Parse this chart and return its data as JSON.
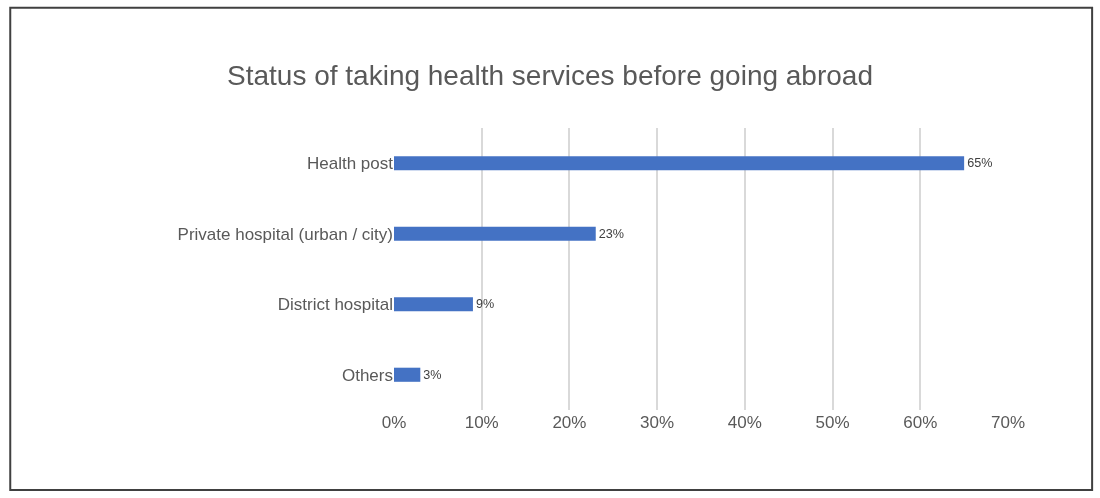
{
  "chart_data": {
    "type": "bar",
    "orientation": "horizontal",
    "title": "Status of taking health services before going abroad",
    "categories": [
      "Health post",
      "Private hospital (urban / city)",
      "District hospital",
      "Others"
    ],
    "values": [
      65,
      23,
      9,
      3
    ],
    "value_labels": [
      "65%",
      "23%",
      "9%",
      "3%"
    ],
    "color": "#4472c4",
    "xlim": [
      0,
      70
    ],
    "xticks": [
      {
        "value": 0,
        "label": "0%"
      },
      {
        "value": 10,
        "label": "10%"
      },
      {
        "value": 20,
        "label": "20%"
      },
      {
        "value": 30,
        "label": "30%"
      },
      {
        "value": 40,
        "label": "40%"
      },
      {
        "value": 50,
        "label": "50%"
      },
      {
        "value": 60,
        "label": "60%"
      },
      {
        "value": 70,
        "label": "70%"
      }
    ],
    "grid": "x",
    "legend": false
  }
}
